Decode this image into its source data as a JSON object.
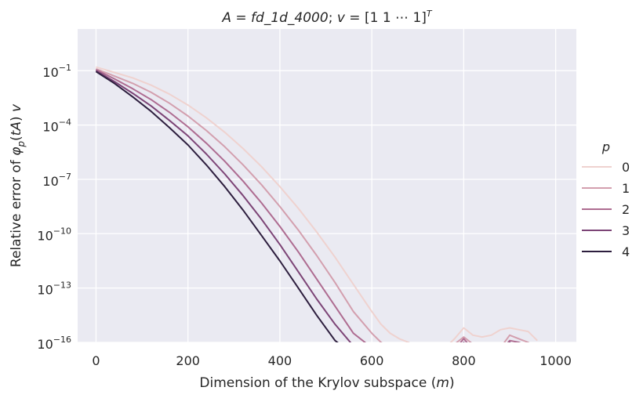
{
  "chart_data": {
    "type": "line",
    "title_parts": {
      "lhs": "A",
      "eq1": " = ",
      "mat": "fd_1d_4000",
      "sep": "; ",
      "vec": "v",
      "eq2": " = ",
      "rhs": "[1 1 ⋯ 1]",
      "sup": "T"
    },
    "xlabel_parts": {
      "text": "Dimension of the Krylov subspace (",
      "var": "m",
      "close": ")"
    },
    "ylabel_parts": {
      "text": "Relative error of ",
      "phi": "φ",
      "sub": "p",
      "arg_open": "(",
      "t": "t",
      "A": "A",
      "arg_close": ")",
      "v": "v"
    },
    "xlim": [
      -40,
      1045
    ],
    "ylim_log10": [
      -16,
      1.3
    ],
    "yscale": "log",
    "grid": true,
    "x_ticks": [
      0,
      200,
      400,
      600,
      800,
      1000
    ],
    "x_tick_labels": [
      "0",
      "200",
      "400",
      "600",
      "800",
      "1000"
    ],
    "y_ticks_exp": [
      -1,
      -4,
      -7,
      -10,
      -13,
      -16
    ],
    "y_tick_labels": [
      {
        "base": "10",
        "exp": "−1"
      },
      {
        "base": "10",
        "exp": "−4"
      },
      {
        "base": "10",
        "exp": "−7"
      },
      {
        "base": "10",
        "exp": "−10"
      },
      {
        "base": "10",
        "exp": "−13"
      },
      {
        "base": "10",
        "exp": "−16"
      }
    ],
    "legend": {
      "title": "p",
      "placement": "outside-right"
    },
    "x": [
      0,
      40,
      80,
      120,
      160,
      200,
      240,
      280,
      320,
      360,
      400,
      440,
      480,
      520,
      560,
      600,
      620,
      640,
      660,
      680,
      700,
      720,
      740,
      760,
      780,
      800,
      820,
      840,
      860,
      880,
      900,
      920,
      940,
      960
    ],
    "series": [
      {
        "name": "0",
        "color": "#efd2cf",
        "log10_values": [
          -0.8,
          -1.1,
          -1.4,
          -1.8,
          -2.3,
          -2.9,
          -3.6,
          -4.4,
          -5.3,
          -6.3,
          -7.4,
          -8.6,
          -9.9,
          -11.3,
          -12.8,
          -14.3,
          -15.0,
          -15.5,
          -15.8,
          -16.0,
          -16.4,
          -16.5,
          -16.5,
          -16.3,
          -15.8,
          -15.2,
          -15.6,
          -15.7,
          -15.6,
          -15.3,
          -15.2,
          -15.3,
          -15.4,
          -15.9
        ]
      },
      {
        "name": "1",
        "color": "#d39fae",
        "log10_values": [
          -0.9,
          -1.3,
          -1.7,
          -2.2,
          -2.8,
          -3.5,
          -4.3,
          -5.2,
          -6.2,
          -7.3,
          -8.5,
          -9.8,
          -11.2,
          -12.7,
          -14.3,
          -15.5,
          -16.0,
          -16.3,
          -16.4,
          -16.5,
          -16.7,
          -16.8,
          -16.8,
          -16.5,
          -16.1,
          -15.7,
          -16.1,
          -16.5,
          -16.6,
          -16.3,
          -15.6,
          -15.8,
          -16.0,
          -16.4
        ]
      },
      {
        "name": "2",
        "color": "#ae6c91",
        "log10_values": [
          -0.95,
          -1.45,
          -2.0,
          -2.6,
          -3.3,
          -4.1,
          -5.0,
          -6.0,
          -7.1,
          -8.3,
          -9.6,
          -11.0,
          -12.5,
          -14.0,
          -15.5,
          -16.3,
          -16.7,
          -16.9,
          -16.9,
          -17.0,
          -17.0,
          -17.0,
          -17.0,
          -16.7,
          -16.4,
          -15.8,
          -16.4,
          -16.8,
          -16.8,
          -16.5,
          -15.9,
          -16.0,
          -16.2,
          -16.6
        ]
      },
      {
        "name": "3",
        "color": "#7c4476",
        "log10_values": [
          -1.0,
          -1.6,
          -2.25,
          -2.95,
          -3.75,
          -4.6,
          -5.6,
          -6.7,
          -7.9,
          -9.2,
          -10.6,
          -12.1,
          -13.6,
          -15.0,
          -16.2,
          -16.8,
          -17.0,
          -17.0,
          -17.0,
          -17.0,
          -17.0,
          -17.0,
          -17.0,
          -16.9,
          -16.7,
          -16.0,
          -16.7,
          -17.0,
          -17.0,
          -16.8,
          -16.0,
          -16.3,
          -16.6,
          -16.9
        ]
      },
      {
        "name": "4",
        "color": "#2d1e3e",
        "log10_values": [
          -1.05,
          -1.7,
          -2.45,
          -3.25,
          -4.15,
          -5.1,
          -6.2,
          -7.4,
          -8.7,
          -10.1,
          -11.5,
          -13.0,
          -14.5,
          -15.9,
          -16.7,
          -16.9,
          -17.0,
          -17.0,
          -17.0,
          -17.0,
          -17.0,
          -17.0,
          -17.0,
          -17.0,
          -16.9,
          -16.4,
          -16.9,
          -17.0,
          -17.0,
          -16.9,
          -16.2,
          -16.5,
          -16.8,
          -17.0
        ]
      }
    ]
  }
}
